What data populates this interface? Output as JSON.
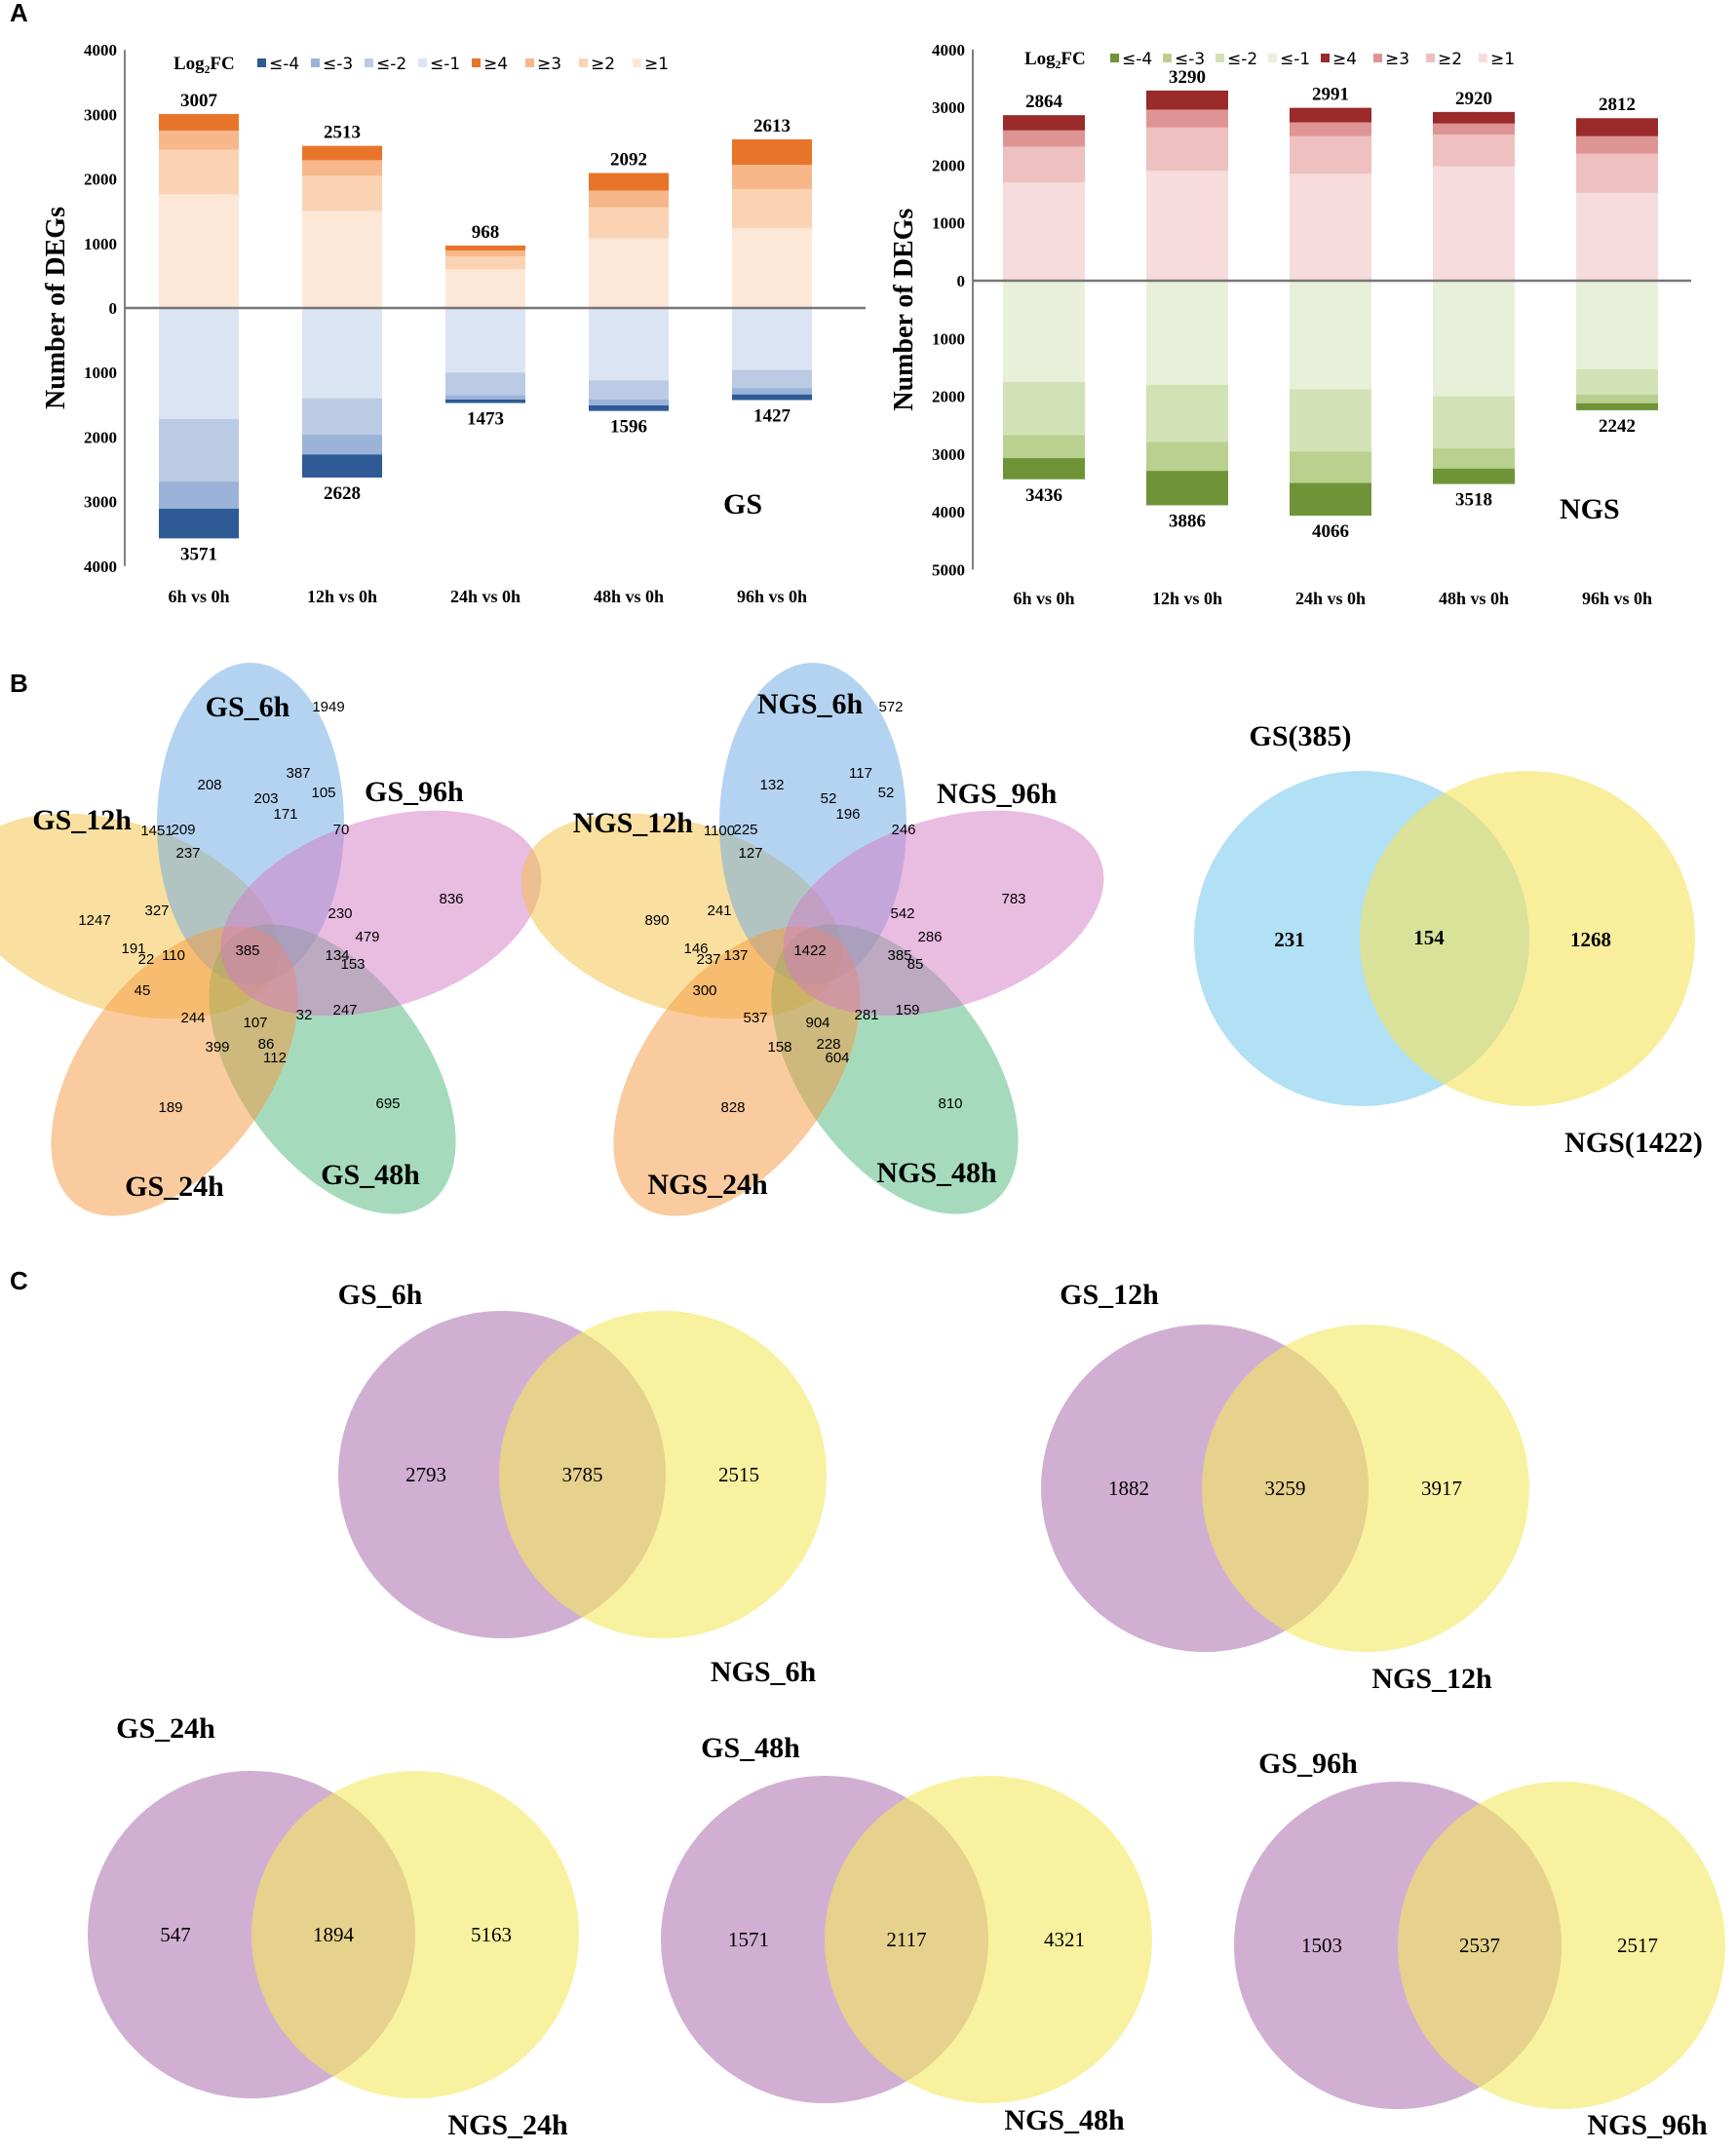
{
  "panels": {
    "a": "A",
    "b": "B",
    "c": "C"
  },
  "colors": {
    "gs_up": [
      "#fde8d8",
      "#fbd3b3",
      "#f7b78a",
      "#e8742a"
    ],
    "gs_down": [
      "#dbe4f2",
      "#bccbe4",
      "#9bb3d9",
      "#2e5a95"
    ],
    "ngs_up": [
      "#f6dcdc",
      "#eec0c0",
      "#df9494",
      "#9b2a2a"
    ],
    "ngs_down": [
      "#e8f0d9",
      "#d3e2b6",
      "#b9d08f",
      "#6f9438"
    ],
    "venn_blue": "#7ecbef",
    "venn_yellow": "#f3e35a",
    "venn_purple": "#b27ab6",
    "venn_yellow_c": "#f4e85f",
    "five": [
      "#6aa7e3",
      "#f4c242",
      "#f5983e",
      "#4bb77a",
      "#d479c6"
    ]
  },
  "chart_data": [
    {
      "type": "bar",
      "title": "GS",
      "ylabel": "Number of DEGs",
      "ylim_up": [
        0,
        4000
      ],
      "ylim_down": [
        0,
        4000
      ],
      "yticks_up": [
        "0",
        "1000",
        "2000",
        "3000",
        "4000"
      ],
      "yticks_down": [
        "1000",
        "2000",
        "3000",
        "4000"
      ],
      "categories": [
        "6h vs 0h",
        "12h vs 0h",
        "24h vs 0h",
        "48h vs 0h",
        "96h vs 0h"
      ],
      "legend_title": "Log₂FC",
      "legend": [
        "≤-4",
        "≤-3",
        "≤-2",
        "≤-1",
        "≥4",
        "≥3",
        "≥2",
        "≥1"
      ],
      "up_series": [
        {
          "name": "≥1",
          "values": [
            1760,
            1500,
            600,
            1080,
            1240
          ]
        },
        {
          "name": "≥2",
          "values": [
            690,
            550,
            200,
            480,
            600
          ]
        },
        {
          "name": "≥3",
          "values": [
            300,
            240,
            90,
            260,
            380
          ]
        },
        {
          "name": "≥4",
          "values": [
            257,
            223,
            78,
            272,
            393
          ]
        }
      ],
      "down_series": [
        {
          "name": "≤-1",
          "values": [
            1720,
            1400,
            1000,
            1120,
            960
          ]
        },
        {
          "name": "≤-2",
          "values": [
            970,
            560,
            350,
            300,
            280
          ]
        },
        {
          "name": "≤-3",
          "values": [
            420,
            310,
            70,
            90,
            100
          ]
        },
        {
          "name": "≤-4",
          "values": [
            461,
            358,
            53,
            86,
            87
          ]
        }
      ],
      "up_totals": [
        "3007",
        "2513",
        "968",
        "2092",
        "2613"
      ],
      "down_totals": [
        "3571",
        "2628",
        "1473",
        "1596",
        "1427"
      ]
    },
    {
      "type": "bar",
      "title": "NGS",
      "ylabel": "Number of DEGs",
      "ylim_up": [
        0,
        4000
      ],
      "ylim_down": [
        0,
        5000
      ],
      "yticks_up": [
        "0",
        "1000",
        "2000",
        "3000",
        "4000"
      ],
      "yticks_down": [
        "1000",
        "2000",
        "3000",
        "4000",
        "5000"
      ],
      "categories": [
        "6h vs 0h",
        "12h vs 0h",
        "24h vs 0h",
        "48h vs 0h",
        "96h vs 0h"
      ],
      "legend_title": "Log₂FC",
      "legend": [
        "≤-4",
        "≤-3",
        "≤-2",
        "≤-1",
        "≥4",
        "≥3",
        "≥2",
        "≥1"
      ],
      "up_series": [
        {
          "name": "≥1",
          "values": [
            1700,
            1900,
            1850,
            1980,
            1520
          ]
        },
        {
          "name": "≥2",
          "values": [
            620,
            750,
            650,
            550,
            680
          ]
        },
        {
          "name": "≥3",
          "values": [
            280,
            310,
            240,
            190,
            300
          ]
        },
        {
          "name": "≥4",
          "values": [
            264,
            330,
            251,
            200,
            312
          ]
        }
      ],
      "down_series": [
        {
          "name": "≤-1",
          "values": [
            1750,
            1800,
            1880,
            2000,
            1530
          ]
        },
        {
          "name": "≤-2",
          "values": [
            920,
            990,
            1080,
            900,
            440
          ]
        },
        {
          "name": "≤-3",
          "values": [
            400,
            500,
            540,
            350,
            150
          ]
        },
        {
          "name": "≤-4",
          "values": [
            366,
            596,
            566,
            268,
            122
          ]
        }
      ],
      "up_totals": [
        "2864",
        "3290",
        "2991",
        "2920",
        "2812"
      ],
      "down_totals": [
        "3436",
        "3886",
        "4066",
        "3518",
        "2242"
      ]
    }
  ],
  "venn5": [
    {
      "sets": [
        "GS_6h",
        "GS_96h",
        "GS_48h",
        "GS_24h",
        "GS_12h"
      ],
      "numbers": [
        "1949",
        "836",
        "695",
        "189",
        "1247",
        "208",
        "387",
        "203",
        "105",
        "171",
        "70",
        "1451",
        "209",
        "237",
        "230",
        "479",
        "327",
        "191",
        "110",
        "22",
        "45",
        "244",
        "107",
        "32",
        "86",
        "399",
        "112",
        "247",
        "134",
        "153",
        "385"
      ]
    },
    {
      "sets": [
        "NGS_6h",
        "NGS_96h",
        "NGS_48h",
        "NGS_24h",
        "NGS_12h"
      ],
      "numbers": [
        "572",
        "783",
        "810",
        "828",
        "890",
        "132",
        "117",
        "52",
        "52",
        "196",
        "246",
        "1100",
        "225",
        "127",
        "542",
        "286",
        "241",
        "146",
        "137",
        "237",
        "300",
        "537",
        "904",
        "281",
        "228",
        "158",
        "604",
        "159",
        "385",
        "85",
        "1422"
      ]
    }
  ],
  "venn_b": {
    "left_label": "GS(385)",
    "right_label": "NGS(1422)",
    "left": "231",
    "mid": "154",
    "right": "1268"
  },
  "venn_c": [
    {
      "a": "GS_6h",
      "b": "NGS_6h",
      "left": "2793",
      "mid": "3785",
      "right": "2515"
    },
    {
      "a": "GS_12h",
      "b": "NGS_12h",
      "left": "1882",
      "mid": "3259",
      "right": "3917"
    },
    {
      "a": "GS_24h",
      "b": "NGS_24h",
      "left": "547",
      "mid": "1894",
      "right": "5163"
    },
    {
      "a": "GS_48h",
      "b": "NGS_48h",
      "left": "1571",
      "mid": "2117",
      "right": "4321"
    },
    {
      "a": "GS_96h",
      "b": "NGS_96h",
      "left": "1503",
      "mid": "2537",
      "right": "2517"
    }
  ]
}
